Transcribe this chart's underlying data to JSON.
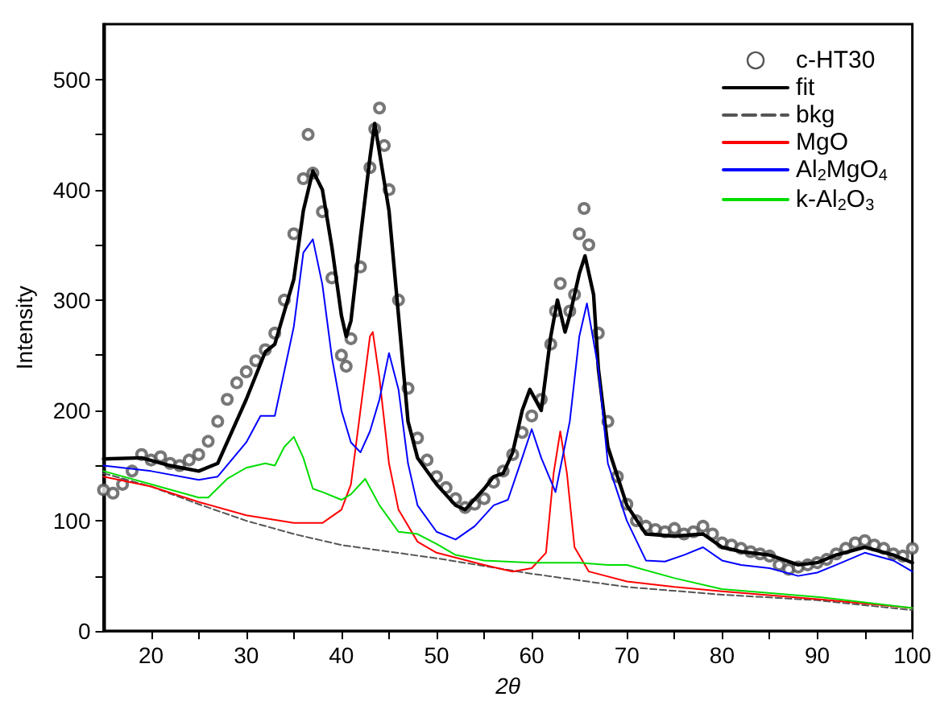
{
  "chart_data": {
    "type": "line",
    "xlabel": "2θ",
    "ylabel": "Intensity",
    "xlim": [
      15,
      100
    ],
    "ylim": [
      0,
      550
    ],
    "xticks": [
      20,
      {
        "value": 25,
        "label": null
      },
      30,
      {
        "value": 35,
        "label": null
      },
      40,
      {
        "value": 45,
        "label": null
      },
      50,
      {
        "value": 55,
        "label": null
      },
      60,
      {
        "value": 65,
        "label": null
      },
      70,
      {
        "value": 75,
        "label": null
      },
      80,
      {
        "value": 85,
        "label": null
      },
      90,
      {
        "value": 95,
        "label": null
      },
      100
    ],
    "yticks": [
      0,
      {
        "value": 50,
        "label": null
      },
      100,
      {
        "value": 150,
        "label": null
      },
      200,
      {
        "value": 250,
        "label": null
      },
      300,
      {
        "value": 350,
        "label": null
      },
      400,
      {
        "value": 450,
        "label": null
      },
      500
    ],
    "grid": false,
    "legend": "top right",
    "series": [
      {
        "name": "c-HT30",
        "type": "scatter",
        "marker": "circle",
        "color": "#555555",
        "x": [
          15,
          16,
          17,
          18,
          19,
          20,
          21,
          22,
          23,
          24,
          25,
          26,
          27,
          28,
          29,
          30,
          31,
          32,
          33,
          34,
          35,
          36,
          36.5,
          37,
          38,
          39,
          40,
          40.5,
          41,
          42,
          43,
          43.5,
          44,
          44.5,
          45,
          46,
          47,
          48,
          49,
          50,
          51,
          52,
          53,
          54,
          55,
          56,
          57,
          58,
          59,
          60,
          61,
          62,
          62.5,
          63,
          64,
          64.5,
          65,
          65.5,
          66,
          67,
          68,
          69,
          70,
          71,
          72,
          73,
          74,
          75,
          76,
          77,
          78,
          79,
          80,
          81,
          82,
          83,
          84,
          85,
          86,
          87,
          88,
          89,
          90,
          91,
          92,
          93,
          94,
          95,
          96,
          97,
          98,
          99,
          100
        ],
        "values": [
          128,
          125,
          133,
          145,
          160,
          155,
          158,
          152,
          150,
          155,
          160,
          172,
          190,
          210,
          225,
          235,
          245,
          255,
          270,
          300,
          360,
          410,
          450,
          415,
          380,
          320,
          250,
          240,
          265,
          330,
          420,
          455,
          474,
          440,
          400,
          300,
          220,
          175,
          155,
          140,
          130,
          120,
          112,
          115,
          120,
          135,
          145,
          160,
          180,
          195,
          210,
          260,
          290,
          315,
          290,
          305,
          360,
          383,
          350,
          270,
          190,
          140,
          115,
          100,
          95,
          92,
          90,
          93,
          88,
          90,
          95,
          88,
          80,
          78,
          75,
          72,
          70,
          68,
          60,
          56,
          58,
          60,
          62,
          65,
          70,
          75,
          80,
          82,
          78,
          75,
          70,
          68,
          75
        ]
      },
      {
        "name": "fit",
        "type": "line",
        "marker": "none",
        "line_style": "solid",
        "color": "#000000",
        "x": [
          15,
          19,
          22,
          25,
          27,
          30,
          32,
          33,
          35,
          36,
          37,
          38,
          39,
          40,
          40.5,
          41,
          42,
          43,
          43.5,
          45,
          46,
          47,
          48,
          50,
          52,
          53,
          55,
          56,
          57,
          58,
          59,
          59.8,
          61,
          62,
          62.7,
          63.5,
          64,
          65,
          65.6,
          66.5,
          67,
          68,
          70,
          72,
          75,
          78,
          80,
          82,
          85,
          88,
          90,
          92,
          95,
          98,
          100
        ],
        "values": [
          156,
          157,
          150,
          145,
          152,
          210,
          253,
          260,
          319,
          381,
          417,
          400,
          348,
          286,
          267,
          281,
          357,
          429,
          460,
          381,
          286,
          190,
          157,
          133,
          114,
          110,
          129,
          140,
          143,
          162,
          200,
          219,
          200,
          267,
          300,
          271,
          286,
          324,
          340,
          305,
          238,
          167,
          114,
          88,
          86,
          88,
          76,
          72,
          69,
          60,
          62,
          69,
          76,
          69,
          62
        ]
      },
      {
        "name": "bkg",
        "type": "line",
        "marker": "none",
        "line_style": "dashed",
        "color": "#555555",
        "x": [
          15,
          20,
          25,
          30,
          35,
          40,
          45,
          50,
          60,
          70,
          80,
          90,
          100
        ],
        "values": [
          143,
          131,
          115,
          100,
          88,
          78,
          72,
          66,
          52,
          40,
          33,
          28,
          19
        ]
      },
      {
        "name": "MgO",
        "type": "line",
        "marker": "none",
        "line_style": "solid",
        "color": "#ff0000",
        "x": [
          15,
          20,
          25,
          30,
          35,
          38,
          40,
          41,
          42,
          43,
          43.3,
          44,
          45,
          46,
          48,
          50,
          55,
          58,
          60,
          61.5,
          62.3,
          63,
          63.7,
          64.5,
          66,
          70,
          75,
          80,
          90,
          100
        ],
        "values": [
          140,
          131,
          117,
          105,
          98,
          98,
          110,
          133,
          200,
          267,
          271,
          229,
          152,
          110,
          81,
          71,
          60,
          54,
          57,
          71,
          143,
          181,
          143,
          76,
          54,
          45,
          40,
          36,
          29,
          21
        ]
      },
      {
        "name": "Al$_{2}$MgO$_{4}$",
        "type": "line",
        "marker": "none",
        "line_style": "solid",
        "color": "#0000ff",
        "x": [
          15,
          20,
          25,
          27,
          30,
          31.5,
          33,
          35,
          36,
          37,
          38,
          39,
          40,
          41,
          42,
          43,
          44,
          45,
          46,
          47,
          48,
          50,
          52,
          54,
          56,
          57.5,
          59,
          60,
          61,
          62.5,
          64,
          65,
          65.8,
          67,
          68,
          70,
          72,
          74,
          76,
          78,
          80,
          82,
          85,
          88,
          90,
          92,
          95,
          98,
          100
        ],
        "values": [
          150,
          145,
          137,
          140,
          171,
          195,
          195,
          276,
          343,
          355,
          314,
          248,
          200,
          171,
          162,
          181,
          210,
          252,
          219,
          152,
          114,
          90,
          83,
          95,
          114,
          119,
          157,
          183,
          157,
          126,
          190,
          267,
          297,
          238,
          152,
          100,
          64,
          63,
          69,
          76,
          64,
          60,
          57,
          50,
          53,
          60,
          71,
          64,
          54
        ]
      },
      {
        "name": "k-Al$_{2}$O$_{3}$",
        "type": "line",
        "marker": "none",
        "line_style": "solid",
        "color": "#00dd00",
        "x": [
          15,
          20,
          25,
          26,
          28,
          30,
          32,
          33,
          34,
          35,
          36,
          37,
          38,
          40,
          41,
          42.5,
          44,
          46,
          48,
          50,
          52,
          55,
          60,
          65,
          68,
          70,
          75,
          80,
          90,
          100
        ],
        "values": [
          145,
          133,
          121,
          121,
          138,
          148,
          152,
          150,
          167,
          176,
          157,
          129,
          126,
          119,
          124,
          138,
          114,
          90,
          88,
          79,
          69,
          64,
          62,
          62,
          60,
          60,
          48,
          38,
          31,
          21
        ]
      }
    ]
  }
}
